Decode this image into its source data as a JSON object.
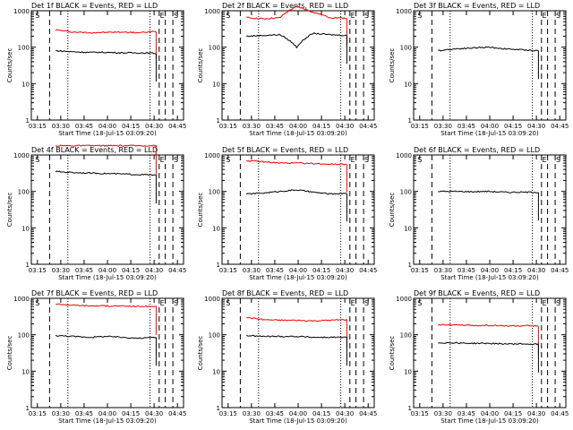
{
  "figure": {
    "xlabel": "Start Time (18-Jul-15 03:09:20)",
    "ylabel": "Counts/sec",
    "x_ticks": [
      "03:15",
      "03:30",
      "03:45",
      "04:00",
      "04:15",
      "04:30",
      "04:45"
    ],
    "y_ticks": [
      "1",
      "10",
      "100",
      "1000"
    ]
  },
  "chart_data": [
    {
      "type": "line",
      "title": "Det 1f BLACK = Events, RED = LLD",
      "xlabel": "Start Time (18-Jul-15 03:09:20)",
      "ylabel": "Counts/sec",
      "ylim": [
        1,
        1000
      ],
      "y_scale": "log",
      "x_ticks": [
        "03:15",
        "03:30",
        "03:45",
        "04:00",
        "04:15",
        "04:30",
        "04:45"
      ],
      "markers": [
        "S",
        "E",
        "S"
      ],
      "series": [
        {
          "name": "LLD",
          "color": "#ff0000",
          "values": [
            300,
            260,
            250,
            255,
            260,
            250,
            270
          ]
        },
        {
          "name": "Events",
          "color": "#000000",
          "values": [
            80,
            75,
            72,
            72,
            70,
            70,
            68
          ]
        }
      ]
    },
    {
      "type": "line",
      "title": "Det 2f BLACK = Events, RED = LLD",
      "xlabel": "Start Time (18-Jul-15 03:09:20)",
      "ylabel": "Counts/sec",
      "ylim": [
        1,
        1000
      ],
      "y_scale": "log",
      "x_ticks": [
        "03:15",
        "03:30",
        "03:45",
        "04:00",
        "04:15",
        "04:30",
        "04:45"
      ],
      "markers": [
        "S",
        "E",
        "S"
      ],
      "series": [
        {
          "name": "LLD",
          "color": "#ff0000",
          "values": [
            650,
            600,
            640,
            1300,
            900,
            650,
            620
          ]
        },
        {
          "name": "Events",
          "color": "#000000",
          "values": [
            200,
            210,
            220,
            100,
            240,
            220,
            210
          ]
        }
      ]
    },
    {
      "type": "line",
      "title": "Det 3f BLACK = Events, RED = LLD",
      "xlabel": "Start Time (18-Jul-15 03:09:20)",
      "ylabel": "Counts/sec",
      "ylim": [
        1,
        1000
      ],
      "y_scale": "log",
      "x_ticks": [
        "03:15",
        "03:30",
        "03:45",
        "04:00",
        "04:15",
        "04:30",
        "04:45"
      ],
      "markers": [
        "S",
        "E",
        "S"
      ],
      "series": [
        {
          "name": "Events",
          "color": "#000000",
          "values": [
            80,
            90,
            95,
            100,
            90,
            85,
            80
          ]
        }
      ]
    },
    {
      "type": "line",
      "title": "Det 4f BLACK = Events, RED = LLD",
      "xlabel": "Start Time (18-Jul-15 03:09:20)",
      "ylabel": "Counts/sec",
      "ylim": [
        1,
        1000
      ],
      "y_scale": "log",
      "x_ticks": [
        "03:15",
        "03:30",
        "03:45",
        "04:00",
        "04:15",
        "04:30",
        "04:45"
      ],
      "markers": [
        "S",
        "E",
        "S"
      ],
      "series": [
        {
          "name": "LLD",
          "color": "#ff0000",
          "values": [
            1800,
            1800,
            1800,
            1800,
            1800,
            1800,
            1800
          ]
        },
        {
          "name": "Events",
          "color": "#000000",
          "values": [
            350,
            330,
            320,
            310,
            300,
            290,
            280
          ]
        }
      ]
    },
    {
      "type": "line",
      "title": "Det 5f BLACK = Events, RED = LLD",
      "xlabel": "Start Time (18-Jul-15 03:09:20)",
      "ylabel": "Counts/sec",
      "ylim": [
        1,
        1000
      ],
      "y_scale": "log",
      "x_ticks": [
        "03:15",
        "03:30",
        "03:45",
        "04:00",
        "04:15",
        "04:30",
        "04:45"
      ],
      "markers": [
        "S",
        "E",
        "S"
      ],
      "series": [
        {
          "name": "LLD",
          "color": "#ff0000",
          "values": [
            700,
            650,
            600,
            600,
            580,
            560,
            560
          ]
        },
        {
          "name": "Events",
          "color": "#000000",
          "values": [
            85,
            90,
            100,
            110,
            95,
            85,
            90
          ]
        }
      ]
    },
    {
      "type": "line",
      "title": "Det 6f BLACK = Events, RED = LLD",
      "xlabel": "Start Time (18-Jul-15 03:09:20)",
      "ylabel": "Counts/sec",
      "ylim": [
        1,
        1000
      ],
      "y_scale": "log",
      "x_ticks": [
        "03:15",
        "03:30",
        "03:45",
        "04:00",
        "04:15",
        "04:30",
        "04:45"
      ],
      "markers": [
        "S",
        "E",
        "S"
      ],
      "series": [
        {
          "name": "Events",
          "color": "#000000",
          "values": [
            100,
            100,
            98,
            100,
            95,
            95,
            95
          ]
        }
      ]
    },
    {
      "type": "line",
      "title": "Det 7f BLACK = Events, RED = LLD",
      "xlabel": "Start Time (18-Jul-15 03:09:20)",
      "ylabel": "Counts/sec",
      "ylim": [
        1,
        1000
      ],
      "y_scale": "log",
      "x_ticks": [
        "03:15",
        "03:30",
        "03:45",
        "04:00",
        "04:15",
        "04:30",
        "04:45"
      ],
      "markers": [
        "S",
        "E",
        "S"
      ],
      "series": [
        {
          "name": "LLD",
          "color": "#ff0000",
          "values": [
            700,
            650,
            620,
            620,
            610,
            600,
            600
          ]
        },
        {
          "name": "Events",
          "color": "#000000",
          "values": [
            95,
            90,
            85,
            90,
            85,
            80,
            85
          ]
        }
      ]
    },
    {
      "type": "line",
      "title": "Det 8f BLACK = Events, RED = LLD",
      "xlabel": "Start Time (18-Jul-15 03:09:20)",
      "ylabel": "Counts/sec",
      "ylim": [
        1,
        1000
      ],
      "y_scale": "log",
      "x_ticks": [
        "03:15",
        "03:30",
        "03:45",
        "04:00",
        "04:15",
        "04:30",
        "04:45"
      ],
      "markers": [
        "S",
        "E",
        "S"
      ],
      "series": [
        {
          "name": "LLD",
          "color": "#ff0000",
          "values": [
            300,
            260,
            250,
            250,
            240,
            250,
            260
          ]
        },
        {
          "name": "Events",
          "color": "#000000",
          "values": [
            95,
            90,
            90,
            90,
            85,
            85,
            85
          ]
        }
      ]
    },
    {
      "type": "line",
      "title": "Det 9f BLACK = Events, RED = LLD",
      "xlabel": "Start Time (18-Jul-15 03:09:20)",
      "ylabel": "Counts/sec",
      "ylim": [
        1,
        1000
      ],
      "y_scale": "log",
      "x_ticks": [
        "03:15",
        "03:30",
        "03:45",
        "04:00",
        "04:15",
        "04:30",
        "04:45"
      ],
      "markers": [
        "S",
        "E",
        "S"
      ],
      "series": [
        {
          "name": "LLD",
          "color": "#ff0000",
          "values": [
            190,
            185,
            180,
            180,
            175,
            175,
            175
          ]
        },
        {
          "name": "Events",
          "color": "#000000",
          "values": [
            60,
            60,
            58,
            58,
            56,
            56,
            55
          ]
        }
      ]
    }
  ]
}
